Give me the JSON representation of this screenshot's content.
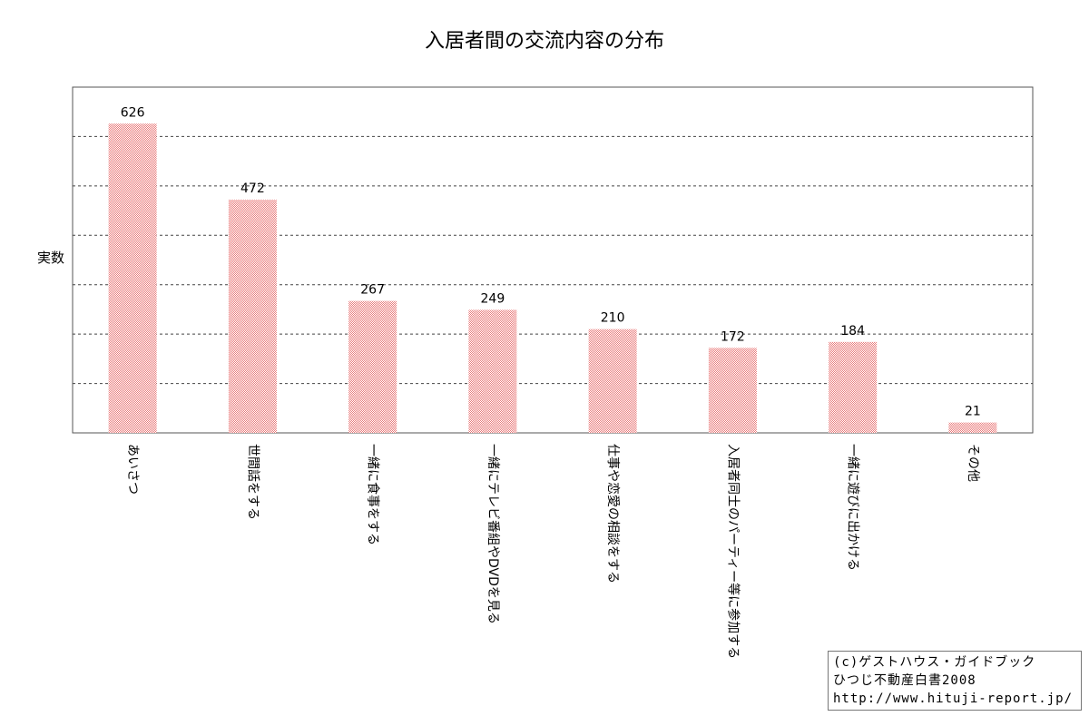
{
  "chart_data": {
    "type": "bar",
    "title": "入居者間の交流内容の分布",
    "ylabel": "実数",
    "xlabel": "",
    "ylim": [
      0,
      700
    ],
    "grid": true,
    "categories": [
      "あいさつ",
      "世間話をする",
      "一緒に食事をする",
      "一緒にテレビ番組やDVDを見る",
      "仕事や恋愛の相談をする",
      "入居者同士のパーティー等に参加する",
      "一緒に遊びに出かける",
      "その他"
    ],
    "values": [
      626,
      472,
      267,
      249,
      210,
      172,
      184,
      21
    ],
    "bar_color": "#f2a8a8"
  },
  "credit": {
    "line1": "(c)ゲストハウス・ガイドブック",
    "line2": "ひつじ不動産白書2008",
    "line3": "http://www.hituji-report.jp/"
  }
}
